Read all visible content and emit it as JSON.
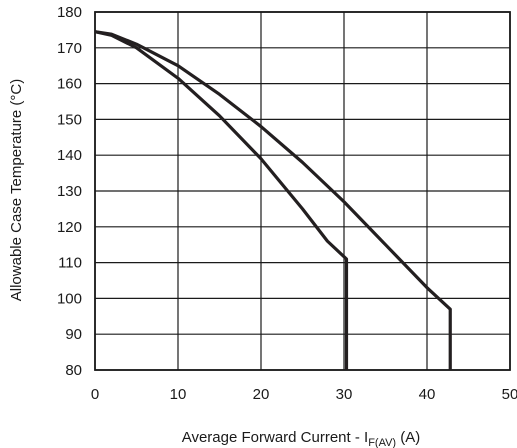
{
  "chart_data": {
    "type": "line",
    "xlabel_main": "Average Forward Current - I",
    "xlabel_sub": "F(AV)",
    "xlabel_unit": " (A)",
    "ylabel": "Allowable Case Temperature (°C)",
    "xlim": [
      0,
      50
    ],
    "ylim": [
      80,
      180
    ],
    "grid": true,
    "x_ticks": [
      "0",
      "10",
      "20",
      "30",
      "40",
      "50"
    ],
    "y_ticks": [
      "80",
      "90",
      "100",
      "110",
      "120",
      "130",
      "140",
      "150",
      "160",
      "170",
      "180"
    ],
    "series": [
      {
        "x": [
          0,
          2,
          5,
          10,
          15,
          20,
          25,
          28,
          30.3,
          30.3
        ],
        "y": [
          174.5,
          173.5,
          170,
          161.5,
          151,
          139,
          125,
          116,
          111,
          80
        ]
      },
      {
        "x": [
          0,
          2,
          5,
          10,
          15,
          20,
          25,
          30,
          35,
          40,
          42.8,
          42.8
        ],
        "y": [
          174.5,
          173.8,
          171,
          165,
          157,
          148,
          138,
          127,
          115,
          103,
          97,
          80
        ]
      }
    ]
  }
}
